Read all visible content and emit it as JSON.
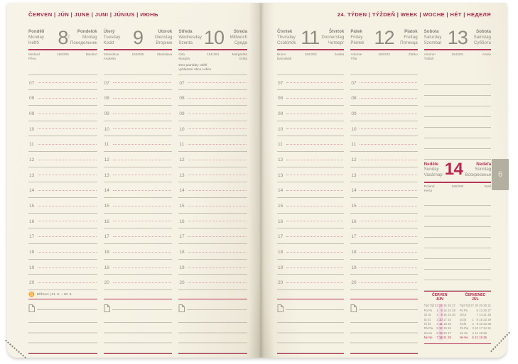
{
  "colors": {
    "accent_red": "#b5365b",
    "header_red": "#a12c4b",
    "sunday_red": "#bc2450",
    "paper": "#f5f1e3",
    "text_gray": "#8f8b80",
    "tab_gray": "#b3afa1"
  },
  "hours": [
    "07",
    "08",
    "09",
    "10",
    "11",
    "12",
    "13",
    "14",
    "15",
    "16",
    "17",
    "18",
    "19",
    "20"
  ],
  "left_page": {
    "month_header": "ČERVEN | JÚN | JUNE | JUNI | JÚNIUS | ИЮНЬ",
    "days": [
      {
        "flags": "with-zodiac",
        "l": [
          "Pondělí",
          "Monday",
          "Hétfő"
        ],
        "num": "8",
        "moon": "☾",
        "r": [
          "Pondelok",
          "Montag",
          "Понедельник"
        ],
        "nd_l": [
          "Medard",
          "Pěva"
        ],
        "doy": "159/206",
        "nd_r": [
          "Medard",
          ""
        ],
        "note": [
          "",
          ""
        ],
        "zicon": "♊",
        "zodiac": "Blíženci | 21. 5. – 20. 6."
      },
      {
        "flags": "",
        "l": [
          "Úterý",
          "Tuesday",
          "Kedd"
        ],
        "num": "9",
        "moon": "",
        "r": [
          "Utorok",
          "Dienstag",
          "Вторник"
        ],
        "nd_l": [
          "Stanislava",
          "Anabela"
        ],
        "doy": "160/205",
        "nd_r": [
          "Stanislava",
          ""
        ],
        "note": [
          "",
          ""
        ],
        "zicon": "",
        "zodiac": ""
      },
      {
        "flags": "",
        "l": [
          "Středa",
          "Wednesday",
          "Szerda"
        ],
        "num": "10",
        "moon": "",
        "r": [
          "Streda",
          "Mittwoch",
          "Среда"
        ],
        "nd_l": [
          "Gita",
          "Margita"
        ],
        "doy": "161/204",
        "nd_r": [
          "Margaréta",
          "Gréta"
        ],
        "note": [
          "Den památky obětí",
          "vyhlazení obce Lidice"
        ],
        "zicon": "",
        "zodiac": ""
      }
    ]
  },
  "right_page": {
    "week_header": "24. TÝDEN | TÝŽDEŇ | WEEK | WOCHE | HÉT | НЕДЕЛЯ",
    "page_tab": "6",
    "days": [
      {
        "flags": "",
        "l": [
          "Čtvrtek",
          "Thursday",
          "Csütörtök"
        ],
        "num": "11",
        "moon": "",
        "r": [
          "Štvrtok",
          "Donnerstag",
          "Четверг"
        ],
        "nd_l": [
          "Bruno",
          "Barnabáš"
        ],
        "doy": "162/203",
        "nd_r": [
          "Jesika",
          ""
        ],
        "note": [
          "",
          ""
        ],
        "zicon": "",
        "zodiac": ""
      },
      {
        "flags": "",
        "l": [
          "Pátek",
          "Friday",
          "Péntek"
        ],
        "num": "12",
        "moon": "",
        "r": [
          "Piatok",
          "Freitag",
          "Пятница"
        ],
        "nd_l": [
          "Antonie",
          "Tília"
        ],
        "doy": "163/202",
        "nd_r": [
          "Zlatko",
          ""
        ],
        "note": [
          "",
          ""
        ],
        "zicon": "",
        "zodiac": ""
      }
    ],
    "saturday": {
      "l": [
        "Sobota",
        "Saturday",
        "Szombat"
      ],
      "num": "13",
      "r": [
        "Sobota",
        "Samstag",
        "Суббота"
      ],
      "nd_l": [
        "Antonín",
        "Tobiáš"
      ],
      "doy": "164/201",
      "nd_r": [
        "Anton",
        ""
      ]
    },
    "sunday": {
      "l": [
        "Neděle",
        "Sunday",
        "Vasárnap"
      ],
      "num": "14",
      "r": [
        "Nedeľa",
        "Sonntag",
        "Воскресенье"
      ],
      "nd_l": [
        "Roland",
        "Herta"
      ],
      "doy": "165/200",
      "nd_r": [
        "Vasil",
        ""
      ]
    },
    "mini_calendars": [
      {
        "title1": "ČERVEN",
        "title2": "JÚN",
        "cells": [
          {
            "t": "Týd Týž",
            "c": "lbl"
          },
          {
            "t": "23"
          },
          {
            "t": "24",
            "c": "hl"
          },
          {
            "t": "25"
          },
          {
            "t": "26"
          },
          {
            "t": "27"
          },
          {
            "t": "Po Po",
            "c": "lbl"
          },
          {
            "t": "1"
          },
          {
            "t": "8",
            "c": "hl"
          },
          {
            "t": "15"
          },
          {
            "t": "22"
          },
          {
            "t": "29"
          },
          {
            "t": "Út Ut",
            "c": "lbl"
          },
          {
            "t": "2"
          },
          {
            "t": "9",
            "c": "hl"
          },
          {
            "t": "16"
          },
          {
            "t": "23"
          },
          {
            "t": "30"
          },
          {
            "t": "St St",
            "c": "lbl"
          },
          {
            "t": "3"
          },
          {
            "t": "10",
            "c": "hl"
          },
          {
            "t": "17"
          },
          {
            "t": "24"
          },
          {
            "t": ""
          },
          {
            "t": "Čt Št",
            "c": "lbl"
          },
          {
            "t": "4"
          },
          {
            "t": "11",
            "c": "hl"
          },
          {
            "t": "18"
          },
          {
            "t": "25"
          },
          {
            "t": ""
          },
          {
            "t": "Pá Pia",
            "c": "lbl"
          },
          {
            "t": "5"
          },
          {
            "t": "12",
            "c": "hl"
          },
          {
            "t": "19"
          },
          {
            "t": "26"
          },
          {
            "t": ""
          },
          {
            "t": "So So",
            "c": "lbl"
          },
          {
            "t": "6"
          },
          {
            "t": "13",
            "c": "hl"
          },
          {
            "t": "20"
          },
          {
            "t": "27"
          },
          {
            "t": ""
          },
          {
            "t": "Ne Ne",
            "c": "lblred"
          },
          {
            "t": "7",
            "c": "red"
          },
          {
            "t": "14",
            "c": "hlred"
          },
          {
            "t": "21",
            "c": "red"
          },
          {
            "t": "28",
            "c": "red"
          },
          {
            "t": ""
          }
        ]
      },
      {
        "title1": "ČERVENEC",
        "title2": "JÚL",
        "cells": [
          {
            "t": "Týd Týž",
            "c": "lbl"
          },
          {
            "t": "27"
          },
          {
            "t": "28"
          },
          {
            "t": "29"
          },
          {
            "t": "30"
          },
          {
            "t": "31"
          },
          {
            "t": "Po Po",
            "c": "lbl"
          },
          {
            "t": ""
          },
          {
            "t": "6"
          },
          {
            "t": "13"
          },
          {
            "t": "20"
          },
          {
            "t": "27"
          },
          {
            "t": "Út Ut",
            "c": "lbl"
          },
          {
            "t": ""
          },
          {
            "t": "7"
          },
          {
            "t": "14"
          },
          {
            "t": "21"
          },
          {
            "t": "28"
          },
          {
            "t": "St St",
            "c": "lbl"
          },
          {
            "t": "1"
          },
          {
            "t": "8"
          },
          {
            "t": "15"
          },
          {
            "t": "22"
          },
          {
            "t": "29"
          },
          {
            "t": "Čt Št",
            "c": "lbl"
          },
          {
            "t": "2"
          },
          {
            "t": "9"
          },
          {
            "t": "16"
          },
          {
            "t": "23"
          },
          {
            "t": "30"
          },
          {
            "t": "Pá Pia",
            "c": "lbl"
          },
          {
            "t": "3"
          },
          {
            "t": "10"
          },
          {
            "t": "17"
          },
          {
            "t": "24"
          },
          {
            "t": "31"
          },
          {
            "t": "So So",
            "c": "lbl"
          },
          {
            "t": "4"
          },
          {
            "t": "11"
          },
          {
            "t": "18"
          },
          {
            "t": "25"
          },
          {
            "t": ""
          },
          {
            "t": "Ne Ne",
            "c": "lblred"
          },
          {
            "t": "5",
            "c": "red"
          },
          {
            "t": "12",
            "c": "red"
          },
          {
            "t": "19",
            "c": "red"
          },
          {
            "t": "26",
            "c": "red"
          },
          {
            "t": ""
          }
        ]
      }
    ]
  }
}
